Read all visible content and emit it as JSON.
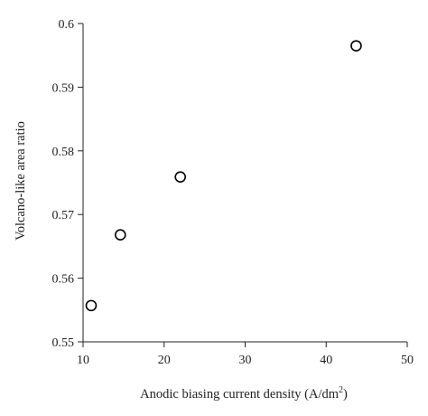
{
  "chart_data": {
    "type": "scatter",
    "xlabel_main": "Anodic biasing current density (A/dm",
    "xlabel_sup": "2",
    "xlabel_close": ")",
    "ylabel": "Volcano-like area ratio",
    "xlim": [
      10,
      50
    ],
    "ylim": [
      0.55,
      0.6
    ],
    "x_ticks": [
      "10",
      "20",
      "30",
      "40",
      "50"
    ],
    "y_ticks": [
      "0.55",
      "0.56",
      "0.57",
      "0.58",
      "0.59",
      "0.6"
    ],
    "grid": false,
    "marker": "open-circle",
    "points": [
      {
        "x": 11.0,
        "y": 0.5557
      },
      {
        "x": 14.6,
        "y": 0.5668
      },
      {
        "x": 22.0,
        "y": 0.5759
      },
      {
        "x": 43.7,
        "y": 0.5965
      }
    ]
  }
}
